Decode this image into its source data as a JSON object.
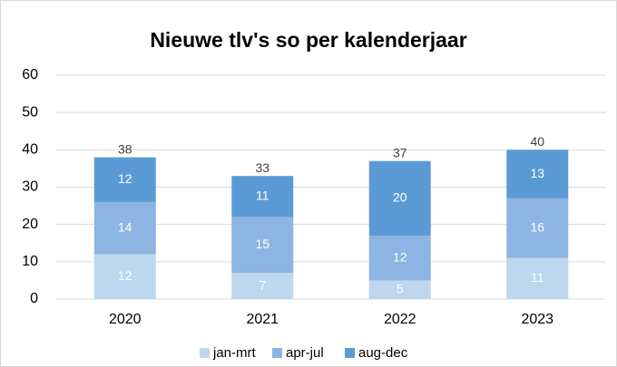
{
  "chart_data": {
    "type": "stacked-bar",
    "title": "Nieuwe tlv's so per kalenderjaar",
    "categories": [
      "2020",
      "2021",
      "2022",
      "2023"
    ],
    "series": [
      {
        "name": "jan-mrt",
        "color": "#bdd7ee",
        "values": [
          12,
          7,
          5,
          11
        ]
      },
      {
        "name": "apr-jul",
        "color": "#8db4e2",
        "values": [
          14,
          15,
          12,
          16
        ]
      },
      {
        "name": "aug-dec",
        "color": "#5b9bd5",
        "values": [
          12,
          11,
          20,
          13
        ]
      }
    ],
    "totals": [
      38,
      33,
      37,
      40
    ],
    "ylim": [
      0,
      60
    ],
    "yticks": [
      0,
      10,
      20,
      30,
      40,
      50,
      60
    ],
    "grid": true,
    "legend": "bottom"
  }
}
